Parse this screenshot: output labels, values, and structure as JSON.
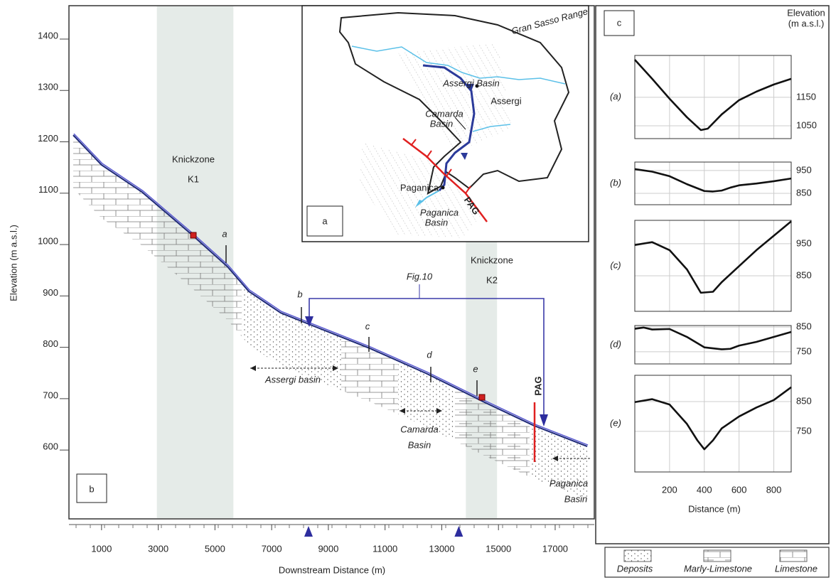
{
  "chart_data": [
    {
      "type": "line",
      "panel_label": "b",
      "xlabel": "Downstream Distance (m)",
      "ylabel": "Elevation (m a.s.l.)",
      "x": [
        0,
        1000,
        2430,
        4190,
        5440,
        6190,
        7320,
        8450,
        10460,
        12460,
        14470,
        16230,
        18130
      ],
      "values": [
        1213,
        1155,
        1102,
        1019,
        957,
        909,
        867,
        842,
        798,
        749,
        694,
        648,
        607
      ],
      "color": "#1f2a78",
      "xlim": [
        -150,
        18380
      ],
      "ylim": [
        466,
        1465
      ],
      "xticks": [
        1000,
        3000,
        5000,
        7000,
        9000,
        11000,
        13000,
        15000,
        17000
      ],
      "yticks": [
        600,
        700,
        800,
        900,
        1000,
        1100,
        1200,
        1300,
        1400
      ],
      "zones": [
        {
          "lines": [
            "Knickzone",
            "K1"
          ],
          "range": [
            2950,
            5650
          ]
        },
        {
          "lines": [
            "Knickzone",
            "K2"
          ],
          "range": [
            13850,
            14950
          ]
        }
      ],
      "section_labels": [
        "a",
        "b",
        "c",
        "d",
        "e"
      ],
      "figure_ref": "Fig.10",
      "fault_label": "PAG",
      "basins": [
        {
          "lines": [
            "Assergi basin"
          ]
        },
        {
          "lines": [
            "Camarda",
            "Basin"
          ]
        },
        {
          "lines": [
            "Paganica",
            "Basin"
          ]
        }
      ],
      "section_markers_x": [
        8300,
        13600
      ]
    },
    {
      "type": "line",
      "panel_label": "c",
      "ylabel": [
        "Elevation",
        "(m a.s.l.)"
      ],
      "label": "(a)",
      "x": [
        0,
        100,
        200,
        300,
        380,
        420,
        500,
        600,
        700,
        800,
        900
      ],
      "values": [
        1282,
        1215,
        1145,
        1080,
        1035,
        1040,
        1090,
        1140,
        1170,
        1195,
        1215
      ],
      "xlim": [
        0,
        900
      ],
      "ylim": [
        1005,
        1297
      ],
      "yticks": [
        1050,
        1150
      ]
    },
    {
      "type": "line",
      "label": "(b)",
      "x": [
        0,
        100,
        200,
        300,
        400,
        450,
        500,
        550,
        600,
        700,
        800,
        900
      ],
      "values": [
        956,
        945,
        925,
        890,
        860,
        858,
        862,
        875,
        885,
        893,
        903,
        915
      ],
      "xlim": [
        0,
        900
      ],
      "ylim": [
        800,
        987
      ],
      "yticks": [
        850,
        950
      ]
    },
    {
      "type": "line",
      "label": "(c)",
      "x": [
        0,
        100,
        200,
        300,
        380,
        450,
        500,
        600,
        700,
        800,
        900
      ],
      "values": [
        946,
        955,
        930,
        870,
        797,
        800,
        830,
        880,
        930,
        975,
        1020
      ],
      "xlim": [
        0,
        900
      ],
      "ylim": [
        739,
        1023
      ],
      "yticks": [
        850,
        950
      ]
    },
    {
      "type": "line",
      "label": "(d)",
      "x": [
        0,
        50,
        100,
        200,
        300,
        400,
        500,
        550,
        600,
        700,
        800,
        900
      ],
      "values": [
        843,
        848,
        840,
        842,
        810,
        768,
        760,
        762,
        775,
        790,
        810,
        830
      ],
      "xlim": [
        0,
        900
      ],
      "ylim": [
        701,
        856
      ],
      "yticks": [
        750,
        850
      ]
    },
    {
      "type": "line",
      "label": "(e)",
      "xlabel": "Distance (m)",
      "x": [
        0,
        100,
        200,
        300,
        360,
        400,
        450,
        500,
        600,
        700,
        800,
        900
      ],
      "values": [
        848,
        858,
        840,
        775,
        720,
        690,
        720,
        760,
        800,
        830,
        855,
        898
      ],
      "xlim": [
        0,
        900
      ],
      "ylim": [
        614,
        938
      ],
      "yticks": [
        750,
        850
      ],
      "xticks": [
        200,
        400,
        600,
        800
      ]
    }
  ],
  "map": {
    "label": "a",
    "labels": [
      {
        "lines": [
          "Gran Sasso Range"
        ]
      },
      {
        "lines": [
          "Assergi Basin"
        ]
      },
      {
        "lines": [
          "Assergi"
        ]
      },
      {
        "lines": [
          "Camarda",
          "Basin"
        ]
      },
      {
        "lines": [
          "Paganica"
        ]
      },
      {
        "lines": [
          "Paganica",
          "Basin"
        ]
      },
      {
        "lines": [
          "PAG"
        ]
      }
    ]
  },
  "legend": {
    "items": [
      "Deposits",
      "Marly-Limestone",
      "Limestone"
    ]
  }
}
